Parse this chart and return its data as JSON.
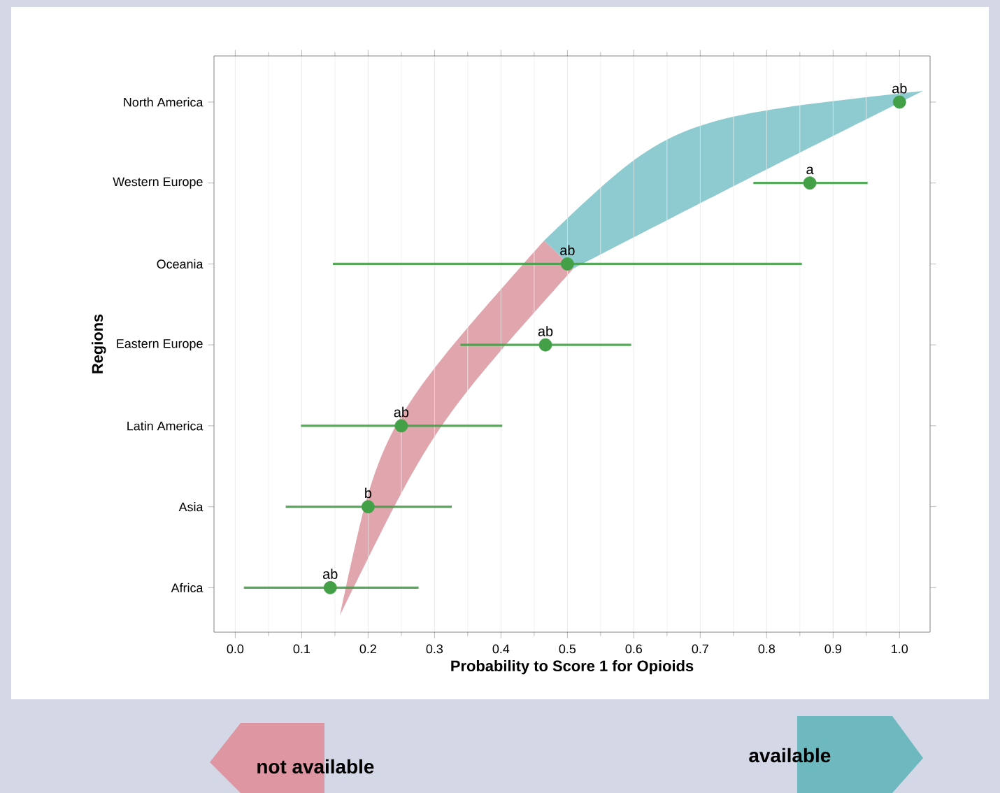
{
  "chart_data": {
    "type": "scatter",
    "orientation": "horizontal",
    "xlabel": "Probability to Score 1 for Opioids",
    "ylabel": "Regions",
    "categories": [
      "North America",
      "Western Europe",
      "Oceania",
      "Eastern Europe",
      "Latin America",
      "Asia",
      "Africa"
    ],
    "values": [
      1.0,
      0.865,
      0.5,
      0.467,
      0.25,
      0.2,
      0.143
    ],
    "errors": [
      null,
      [
        0.78,
        0.952
      ],
      [
        0.147,
        0.853
      ],
      [
        0.339,
        0.596
      ],
      [
        0.099,
        0.402
      ],
      [
        0.076,
        0.326
      ],
      [
        0.013,
        0.276
      ]
    ],
    "color": "#43a047",
    "marker": "circle",
    "grid": "x",
    "xlim": [
      -0.032,
      1.046
    ],
    "xticks": [
      {
        "value": 0,
        "label": "0.0"
      },
      {
        "value": 0.1,
        "label": "0.1"
      },
      {
        "value": 0.2,
        "label": "0.2"
      },
      {
        "value": 0.3,
        "label": "0.3"
      },
      {
        "value": 0.4,
        "label": "0.4"
      },
      {
        "value": 0.5,
        "label": "0.5"
      },
      {
        "value": 0.6,
        "label": "0.6"
      },
      {
        "value": 0.7,
        "label": "0.7"
      },
      {
        "value": 0.8,
        "label": "0.8"
      },
      {
        "value": 0.9,
        "label": "0.9"
      },
      {
        "value": 1.0,
        "label": "1.0"
      }
    ],
    "annotations": [
      {
        "text": "ab",
        "x": 1.0,
        "y": "North America"
      },
      {
        "text": "a",
        "x": 0.865,
        "y": "Western Europe"
      },
      {
        "text": "ab",
        "x": 0.5,
        "y": "Oceania"
      },
      {
        "text": "ab",
        "x": 0.467,
        "y": "Eastern Europe"
      },
      {
        "text": "ab",
        "x": 0.25,
        "y": "Latin America"
      },
      {
        "text": "b",
        "x": 0.2,
        "y": "Asia"
      },
      {
        "text": "ab",
        "x": 0.143,
        "y": "Africa"
      },
      "not available",
      "available"
    ]
  }
}
